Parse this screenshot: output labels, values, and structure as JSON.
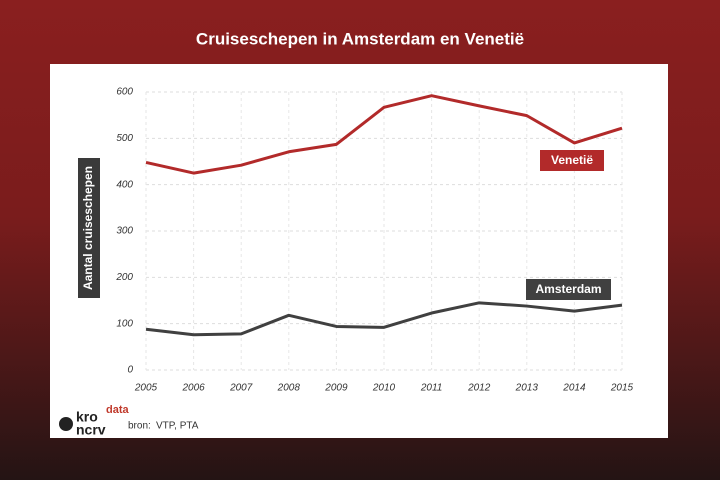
{
  "chart_data": {
    "type": "line",
    "title": "Cruiseschepen in Amsterdam en Venetië",
    "y_label": "Aantal cruiseschepen",
    "categories": [
      "2005",
      "2006",
      "2007",
      "2008",
      "2009",
      "2010",
      "2011",
      "2012",
      "2013",
      "2014",
      "2015"
    ],
    "series": [
      {
        "name": "Venetië",
        "color": "#b22a2a",
        "values": [
          448,
          425,
          442,
          471,
          487,
          567,
          592,
          570,
          549,
          490,
          522
        ]
      },
      {
        "name": "Amsterdam",
        "color": "#404040",
        "values": [
          88,
          76,
          78,
          118,
          94,
          92,
          123,
          145,
          138,
          127,
          140
        ]
      }
    ],
    "ylim": [
      0,
      600
    ],
    "yticks": [
      0,
      100,
      200,
      300,
      400,
      500,
      600
    ],
    "grid": true,
    "source_label": "bron:",
    "source": "VTP, PTA",
    "logo": {
      "top": "kro",
      "bottom": "ncrv",
      "tag": "data"
    }
  }
}
